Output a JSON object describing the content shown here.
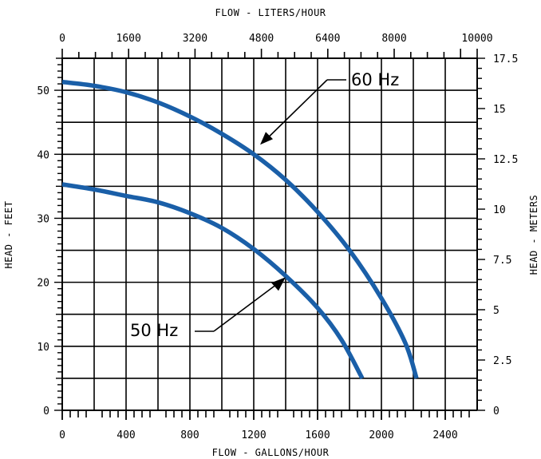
{
  "chart_data": {
    "type": "line",
    "xlabel": "FLOW - GALLONS/HOUR",
    "xlabel_top": "FLOW - LITERS/HOUR",
    "ylabel": "HEAD - FEET",
    "ylabel_right": "HEAD - METERS",
    "xlim": [
      0,
      2600
    ],
    "ylim": [
      0,
      55
    ],
    "xlim_top": [
      0,
      10000
    ],
    "ylim_right": [
      0,
      17.5
    ],
    "grid": true,
    "x_ticks": [
      "0",
      "400",
      "800",
      "1200",
      "1600",
      "2000",
      "2400"
    ],
    "y_ticks": [
      "0",
      "10",
      "20",
      "30",
      "40",
      "50"
    ],
    "x_ticks_top": [
      "0",
      "1600",
      "3200",
      "4800",
      "6400",
      "8000",
      "10000"
    ],
    "y_ticks_right": [
      "0",
      "2.5",
      "5",
      "7.5",
      "10",
      "12.5",
      "15",
      "17.5"
    ],
    "series": [
      {
        "name": "60 Hz",
        "color": "#1a5fa8",
        "x": [
          0,
          200,
          400,
          600,
          800,
          1000,
          1200,
          1400,
          1600,
          1800,
          2000,
          2150,
          2220
        ],
        "y": [
          51.3,
          50.7,
          49.7,
          48.1,
          45.9,
          43.2,
          40.0,
          36.0,
          31.0,
          25.0,
          17.5,
          10.5,
          5.0
        ]
      },
      {
        "name": "50 Hz",
        "color": "#1a5fa8",
        "x": [
          0,
          200,
          400,
          600,
          800,
          1000,
          1200,
          1400,
          1600,
          1750,
          1880
        ],
        "y": [
          35.3,
          34.5,
          33.5,
          32.5,
          30.8,
          28.5,
          25.2,
          21.0,
          16.0,
          11.0,
          5.0
        ]
      }
    ],
    "annotations": [
      {
        "text": "60 Hz",
        "points_to_x": 1240,
        "points_to_y": 41.5
      },
      {
        "text": "50 Hz",
        "points_to_x": 1400,
        "points_to_y": 20.8
      }
    ]
  }
}
